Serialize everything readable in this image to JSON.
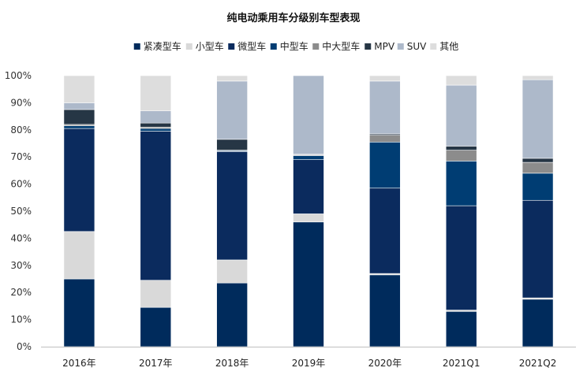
{
  "chart_data": {
    "type": "bar",
    "stacked": true,
    "percent": true,
    "title": "纯电动乘用车分级别车型表现",
    "xlabel": "",
    "ylabel": "",
    "ylim": [
      0,
      100
    ],
    "yticks": [
      "0%",
      "10%",
      "20%",
      "30%",
      "40%",
      "50%",
      "60%",
      "70%",
      "80%",
      "90%",
      "100%"
    ],
    "legend_position": "top",
    "grid": false,
    "categories": [
      "2016年",
      "2017年",
      "2018年",
      "2019年",
      "2020年",
      "2021Q1",
      "2021Q2"
    ],
    "series": [
      {
        "name": "紧凑型车",
        "color": "#002B5C",
        "values": [
          25,
          14.5,
          23.5,
          46,
          26.5,
          13,
          17.5
        ]
      },
      {
        "name": "小型车",
        "color": "#D9D9D9",
        "values": [
          17.5,
          10,
          8.5,
          3,
          0.5,
          0.5,
          0.5
        ]
      },
      {
        "name": "微型车",
        "color": "#0B2B5E",
        "values": [
          38,
          55,
          40,
          20,
          31.5,
          38.5,
          36
        ]
      },
      {
        "name": "中型车",
        "color": "#003D73",
        "values": [
          1,
          1,
          0.3,
          1.5,
          17,
          16.5,
          10
        ]
      },
      {
        "name": "中大型车",
        "color": "#8C8C8C",
        "values": [
          0.5,
          0.5,
          0.2,
          0.3,
          2.5,
          4,
          4
        ]
      },
      {
        "name": "MPV",
        "color": "#263645",
        "values": [
          5.5,
          1.5,
          4,
          0.2,
          0.5,
          1.5,
          1.5
        ]
      },
      {
        "name": "SUV",
        "color": "#ADB9CA",
        "values": [
          2.5,
          4.5,
          21.5,
          29,
          19.5,
          22.5,
          29
        ]
      },
      {
        "name": "其他",
        "color": "#DDDDDD",
        "values": [
          10,
          13,
          2,
          0,
          2,
          3.5,
          1.5
        ]
      }
    ]
  }
}
